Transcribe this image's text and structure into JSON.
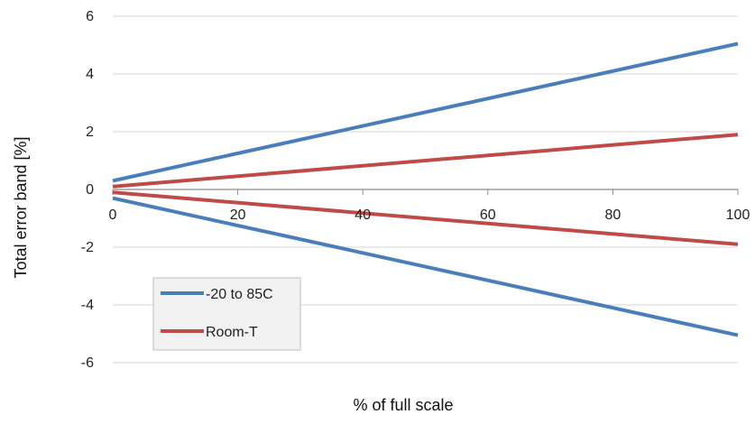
{
  "chart_data": {
    "type": "line",
    "title": "",
    "xlabel": "% of full scale",
    "ylabel": "Total error band [%]",
    "xlim": [
      0,
      100
    ],
    "ylim": [
      -6,
      6
    ],
    "x_ticks": [
      0,
      20,
      40,
      60,
      80,
      100
    ],
    "y_ticks": [
      -6,
      -4,
      -2,
      0,
      2,
      4,
      6
    ],
    "grid": "horizontal",
    "legend_position": "bottom-left",
    "series": [
      {
        "name": "-20 to 85C",
        "color": "#4a7ebb",
        "lines": [
          {
            "x": [
              0,
              100
            ],
            "y": [
              0.3,
              5.05
            ]
          },
          {
            "x": [
              0,
              100
            ],
            "y": [
              -0.3,
              -5.05
            ]
          }
        ]
      },
      {
        "name": "Room-T",
        "color": "#be4b48",
        "lines": [
          {
            "x": [
              0,
              100
            ],
            "y": [
              0.1,
              1.9
            ]
          },
          {
            "x": [
              0,
              100
            ],
            "y": [
              -0.1,
              -1.9
            ]
          }
        ]
      }
    ]
  }
}
